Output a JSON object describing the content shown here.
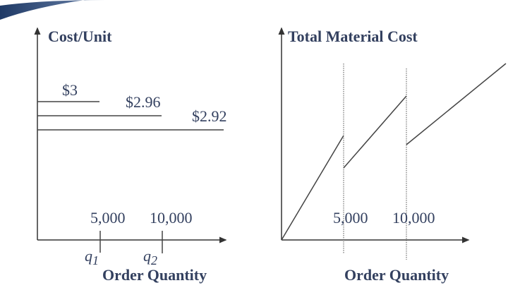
{
  "left_chart": {
    "y_axis_label": "Cost/Unit",
    "x_axis_label": "Order Quantity",
    "price_labels": [
      "$3",
      "$2.96",
      "$2.92"
    ],
    "break_labels": [
      "5,000",
      "10,000"
    ],
    "break_symbols": [
      {
        "base": "q",
        "sub": "1"
      },
      {
        "base": "q",
        "sub": "2"
      }
    ]
  },
  "right_chart": {
    "y_axis_label": "Total Material Cost",
    "x_axis_label": "Order Quantity",
    "break_labels": [
      "5,000",
      "10,000"
    ]
  },
  "colors": {
    "text": "#33405f",
    "banner": "#1f3a66"
  }
}
